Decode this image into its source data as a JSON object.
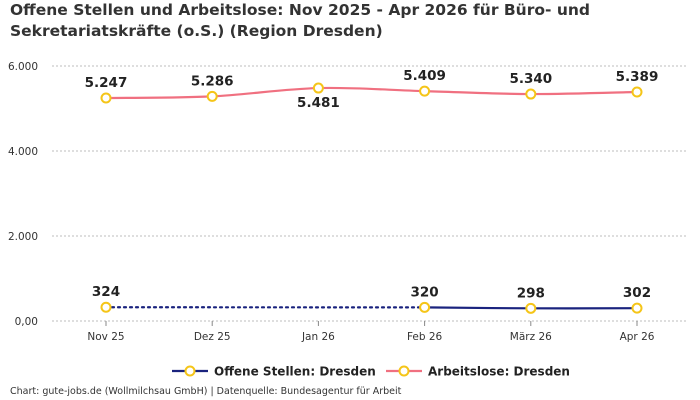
{
  "chart_data": {
    "type": "line",
    "title": "Offene Stellen und Arbeitslose: Nov 2025 - Apr 2026 für Büro- und Sekretariatskräfte (o.S.) (Region Dresden)",
    "categories": [
      "Nov 25",
      "Dez 25",
      "Jan 26",
      "Feb 26",
      "März 26",
      "Apr 26"
    ],
    "y_ticks": [
      "0,00",
      "2.000",
      "4.000",
      "6.000"
    ],
    "ylim": [
      0,
      6000
    ],
    "grid": true,
    "legend_position": "bottom",
    "series": [
      {
        "name": "Offene Stellen: Dresden",
        "color": "#1a237e",
        "values": [
          324,
          null,
          null,
          320,
          298,
          302
        ],
        "labels": [
          "324",
          "",
          "",
          "320",
          "298",
          "302"
        ],
        "gap_style": "dotted"
      },
      {
        "name": "Arbeitslose: Dresden",
        "color": "#f07080",
        "values": [
          5247,
          5286,
          5481,
          5409,
          5340,
          5389
        ],
        "labels": [
          "5.247",
          "5.286",
          "5.481",
          "5.409",
          "5.340",
          "5.389"
        ]
      }
    ],
    "marker_color": "#f5c518"
  },
  "footer": "Chart: gute-jobs.de (Wollmilchsau GmbH) | Datenquelle: Bundesagentur für Arbeit"
}
